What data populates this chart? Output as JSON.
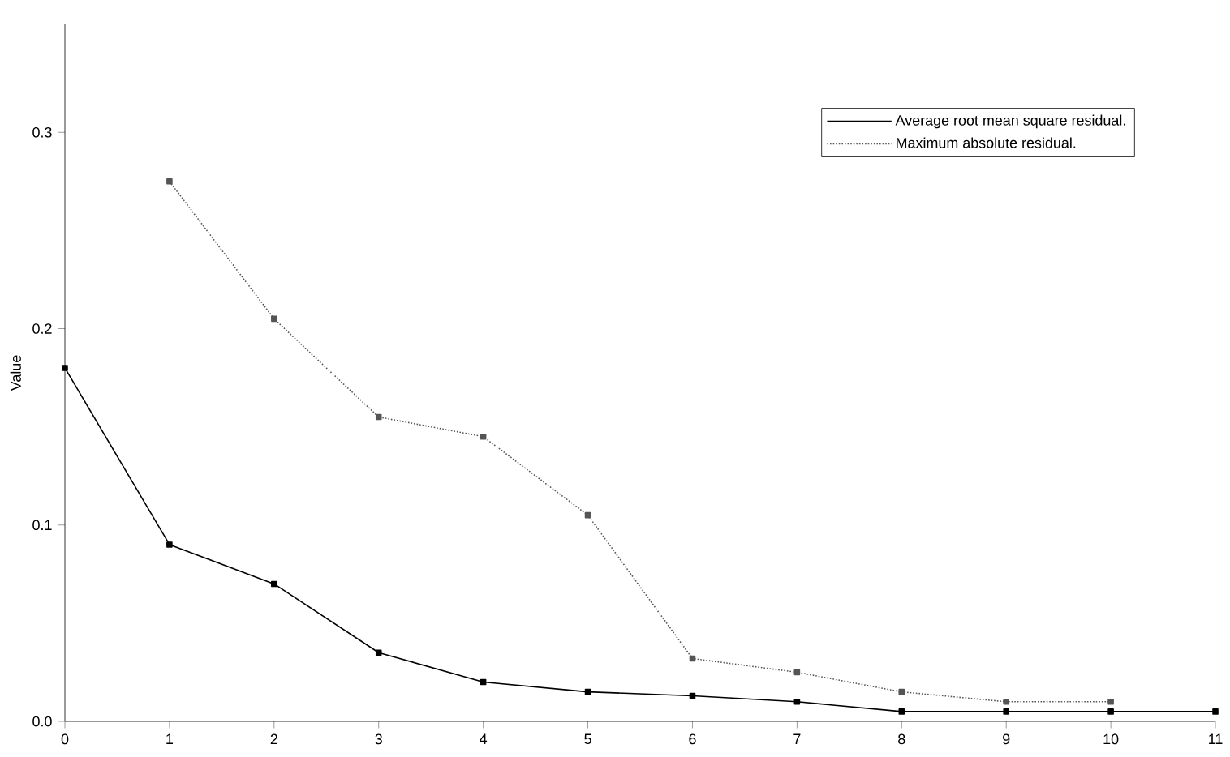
{
  "chart_data": {
    "type": "line",
    "ylabel": "Value",
    "categories": [
      "0",
      "1",
      "2",
      "3",
      "4",
      "5",
      "6",
      "7",
      "8",
      "9",
      "10",
      "11"
    ],
    "series": [
      {
        "name": "Average root mean square residual.",
        "color": "#000000",
        "line_style": "solid",
        "values": [
          0.18,
          0.09,
          0.07,
          0.035,
          0.02,
          0.015,
          0.013,
          0.01,
          0.005,
          0.005,
          0.005,
          0.005
        ]
      },
      {
        "name": "Maximum absolute residual.",
        "color": "#555555",
        "line_style": "dotted",
        "values": [
          null,
          0.275,
          0.205,
          0.155,
          0.145,
          0.105,
          0.032,
          0.025,
          0.015,
          0.01,
          0.01,
          null
        ]
      }
    ],
    "ylim": [
      0,
      0.355
    ],
    "yticks": [
      {
        "value": 0,
        "label": "0.0"
      },
      0.1,
      0.2,
      0.3
    ],
    "marker": "square",
    "legend": "top right",
    "grid": false
  }
}
